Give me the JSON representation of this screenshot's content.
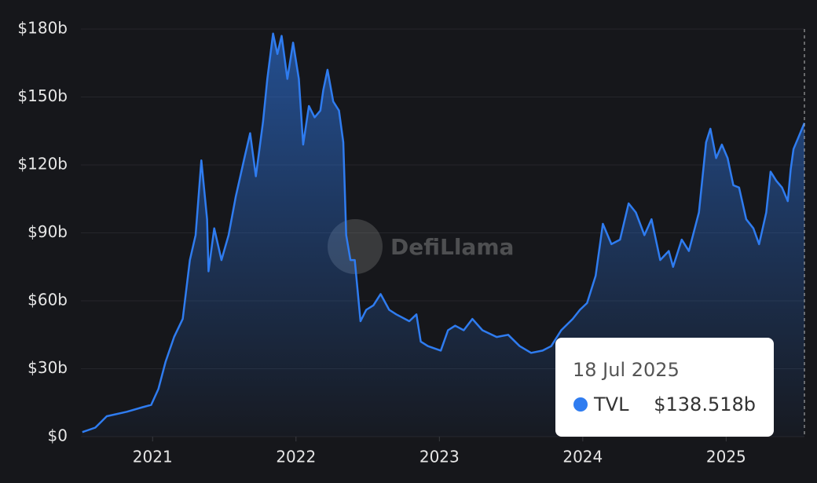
{
  "chart_data": {
    "type": "area",
    "watermark": "DefiLlama",
    "x": [
      2020.51,
      2020.6,
      2020.68,
      2020.82,
      2020.93,
      2020.99,
      2021.04,
      2021.09,
      2021.15,
      2021.21,
      2021.26,
      2021.3,
      2021.34,
      2021.38,
      2021.39,
      2021.43,
      2021.48,
      2021.53,
      2021.58,
      2021.64,
      2021.68,
      2021.72,
      2021.77,
      2021.8,
      2021.84,
      2021.87,
      2021.9,
      2021.94,
      2021.98,
      2022.02,
      2022.05,
      2022.09,
      2022.13,
      2022.17,
      2022.19,
      2022.22,
      2022.26,
      2022.3,
      2022.33,
      2022.35,
      2022.38,
      2022.41,
      2022.45,
      2022.49,
      2022.54,
      2022.59,
      2022.65,
      2022.7,
      2022.79,
      2022.84,
      2022.87,
      2022.92,
      2023.01,
      2023.06,
      2023.11,
      2023.17,
      2023.23,
      2023.3,
      2023.4,
      2023.48,
      2023.56,
      2023.64,
      2023.72,
      2023.78,
      2023.85,
      2023.93,
      2023.98,
      2024.03,
      2024.09,
      2024.14,
      2024.2,
      2024.26,
      2024.32,
      2024.37,
      2024.43,
      2024.48,
      2024.54,
      2024.6,
      2024.63,
      2024.69,
      2024.74,
      2024.81,
      2024.86,
      2024.89,
      2024.93,
      2024.97,
      2025.01,
      2025.05,
      2025.09,
      2025.14,
      2025.19,
      2025.23,
      2025.28,
      2025.31,
      2025.35,
      2025.39,
      2025.43,
      2025.45,
      2025.47,
      2025.546
    ],
    "series": [
      {
        "name": "TVL",
        "color": "#2f7cf0",
        "values": [
          2,
          4,
          9,
          11,
          13,
          14,
          21,
          33,
          44,
          52,
          78,
          89,
          122,
          96,
          73,
          92,
          78,
          89,
          106,
          123,
          134,
          115,
          139,
          158,
          178,
          169,
          177,
          158,
          174,
          158,
          129,
          146,
          141,
          144,
          153,
          162,
          148,
          144,
          130,
          89,
          78,
          78,
          51,
          56,
          58,
          63,
          56,
          54,
          51,
          54,
          42,
          40,
          38,
          47,
          49,
          47,
          52,
          47,
          44,
          45,
          40,
          37,
          38,
          40,
          47,
          52,
          56,
          59,
          71,
          94,
          85,
          87,
          103,
          99,
          89,
          96,
          78,
          82,
          75,
          87,
          82,
          99,
          130,
          136,
          123,
          129,
          123,
          111,
          110,
          96,
          92,
          85,
          99,
          117,
          113,
          110,
          104,
          118,
          127,
          138.518
        ]
      }
    ],
    "xlim": [
      2020.5,
      2025.546
    ],
    "xticks": [
      2021,
      2022,
      2023,
      2024,
      2025
    ],
    "ylim": [
      0,
      180
    ],
    "yticks": [
      {
        "value": 0,
        "label": "$0"
      },
      {
        "value": 30,
        "label": "$30b"
      },
      {
        "value": 60,
        "label": "$60b"
      },
      {
        "value": 90,
        "label": "$90b"
      },
      {
        "value": 120,
        "label": "$120b"
      },
      {
        "value": 150,
        "label": "$150b"
      },
      {
        "value": 180,
        "label": "$180b"
      }
    ],
    "grid": true,
    "tooltip": {
      "x": 2025.546,
      "title": "18 Jul 2025",
      "value_label": "$138.518b"
    }
  }
}
